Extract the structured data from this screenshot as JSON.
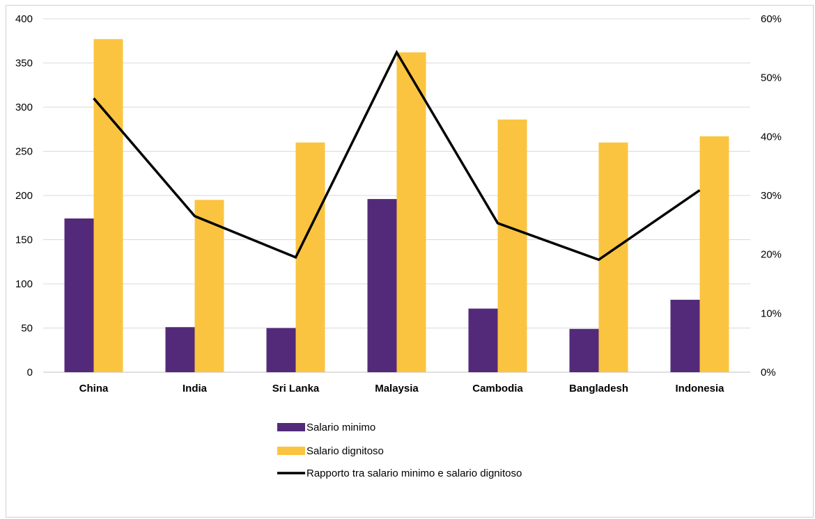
{
  "chart_data": {
    "type": "bar",
    "categories": [
      "China",
      "India",
      "Sri Lanka",
      "Malaysia",
      "Cambodia",
      "Bangladesh",
      "Indonesia"
    ],
    "series": [
      {
        "name": "Salario minimo",
        "type": "bar",
        "axis": "left",
        "color": "#532a7a",
        "values": [
          174,
          51,
          50,
          196,
          72,
          49,
          82
        ]
      },
      {
        "name": "Salario dignitoso",
        "type": "bar",
        "axis": "left",
        "color": "#fbc440",
        "values": [
          377,
          195,
          260,
          362,
          286,
          260,
          267
        ]
      },
      {
        "name": "Rapporto tra salario minimo e salario dignitoso",
        "type": "line",
        "axis": "right",
        "color": "#000000",
        "values": [
          0.465,
          0.265,
          0.195,
          0.543,
          0.253,
          0.191,
          0.309
        ]
      }
    ],
    "y_left": {
      "min": 0,
      "max": 400,
      "ticks": [
        "0",
        "50",
        "100",
        "150",
        "200",
        "250",
        "300",
        "350",
        "400"
      ]
    },
    "y_right": {
      "min": 0,
      "max": 0.6,
      "ticks": [
        "0%",
        "10%",
        "20%",
        "30%",
        "40%",
        "50%",
        "60%"
      ]
    },
    "grid": true,
    "legend_position": "bottom-center",
    "title": "",
    "xlabel": "",
    "ylabel": ""
  }
}
